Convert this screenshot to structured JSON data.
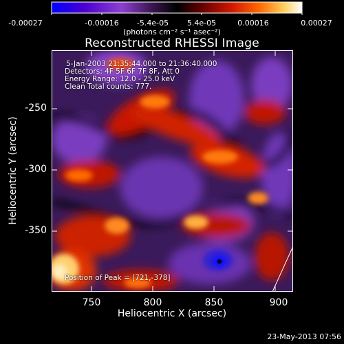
{
  "colorbar": {
    "tick_labels": [
      "-0.00027",
      "-0.00016",
      "-5.4e-05",
      "5.4e-05",
      "0.00016",
      "0.00027"
    ],
    "units": "(photons cm⁻² s⁻¹ asec⁻²)",
    "colors": [
      "#0000ff",
      "#5a00c8",
      "#8c3cc8",
      "#3c1450",
      "#000000",
      "#640000",
      "#c81400",
      "#ff6400",
      "#ffc850",
      "#ffffff"
    ]
  },
  "title": "Reconstructed RHESSI Image",
  "info": {
    "time_range": "5-Jan-2003 21:35:44.000 to 21:36:40.000",
    "detectors": "Detectors: 4F 5F 6F 7F 8F, Att 0",
    "energy_range": "Energy Range: 12.0 - 25.0 keV",
    "clean": "Clean    Total counts: 777."
  },
  "peak_position": "Position of Peak = [721,-378]",
  "axes": {
    "xlabel": "Heliocentric X (arcsec)",
    "ylabel": "Heliocentric Y (arcsec)",
    "xticks": [
      "750",
      "800",
      "850",
      "900"
    ],
    "yticks": [
      "-250",
      "-300",
      "-350"
    ]
  },
  "footer_date": "23-May-2013 07:56"
}
